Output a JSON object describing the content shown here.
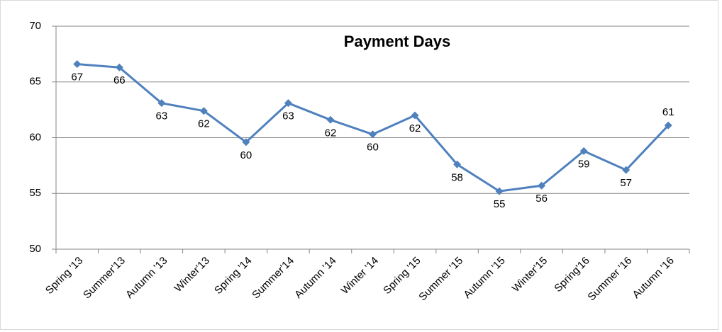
{
  "chart_data": {
    "type": "line",
    "title": "Payment Days",
    "categories": [
      "Spring '13",
      "Summer'13",
      "Autumn '13",
      "Winter'13",
      "Spring '14",
      "Summer'14",
      "Autumn '14",
      "Winter '14",
      "Spring '15",
      "Summer '15",
      "Autumn '15",
      "Winter'15",
      "Spring'16",
      "Summer '16",
      "Autumn '16"
    ],
    "series": [
      {
        "name": "Payment Days",
        "color": "#4f81bd",
        "values": [
          66.6,
          66.3,
          63.1,
          62.4,
          59.6,
          63.1,
          61.6,
          60.3,
          62.0,
          57.6,
          55.2,
          55.7,
          58.8,
          57.1,
          61.1
        ],
        "value_labels": [
          "67",
          "66",
          "63",
          "62",
          "60",
          "63",
          "62",
          "60",
          "62",
          "58",
          "55",
          "56",
          "59",
          "57",
          "61"
        ]
      }
    ],
    "ylim": [
      50,
      70
    ],
    "yticks": [
      50,
      55,
      60,
      65,
      70
    ],
    "grid": true
  }
}
